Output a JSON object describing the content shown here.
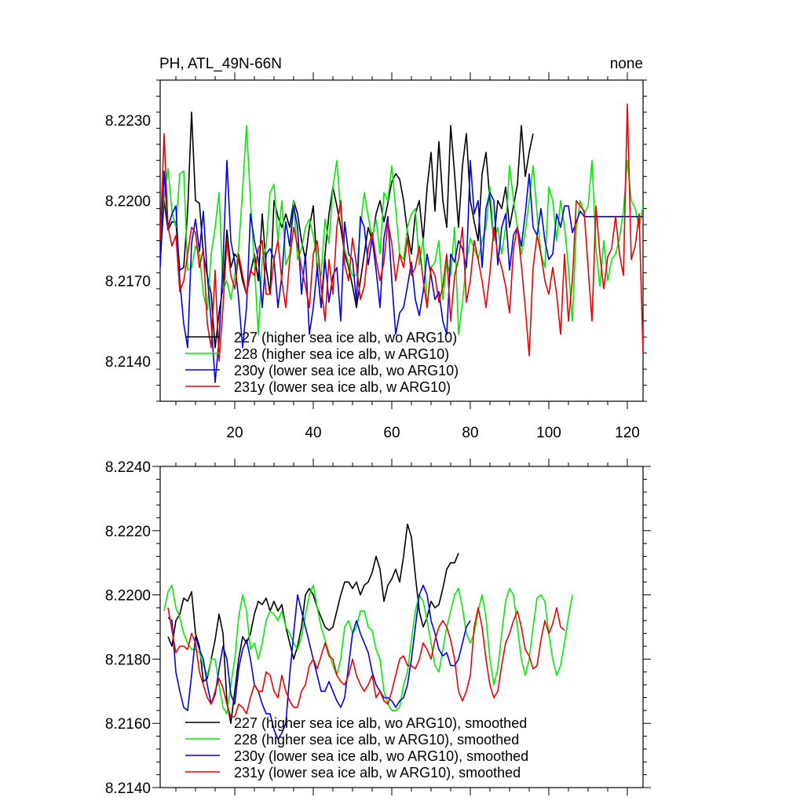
{
  "figure": {
    "title_left": "PH, ATL_49N-66N",
    "title_right": "none"
  },
  "chart_data": [
    {
      "type": "line",
      "title": "PH, ATL_49N-66N",
      "xlim": [
        1,
        124
      ],
      "ylim": [
        8.2125,
        8.2245
      ],
      "x_ticks": [
        20,
        40,
        60,
        80,
        100,
        120
      ],
      "x_tick_labels": [
        "20",
        "40",
        "60",
        "80",
        "100",
        "120"
      ],
      "y_ticks": [
        8.214,
        8.217,
        8.22,
        8.223
      ],
      "y_tick_labels": [
        "8.2140",
        "8.2170",
        "8.2200",
        "8.2230"
      ],
      "grid": false,
      "legend_position": "bottom-left",
      "series": [
        {
          "name": "227 (higher sea ice alb, wo ARG10)",
          "color": "#000000",
          "x_start": 1,
          "values": [
            8.2177,
            8.22,
            8.2189,
            8.2192,
            8.2192,
            8.2174,
            8.2175,
            8.2196,
            8.2233,
            8.22,
            8.2199,
            8.218,
            8.2172,
            8.2165,
            8.2145,
            8.2158,
            8.2168,
            8.2189,
            8.2175,
            8.218,
            8.2178,
            8.217,
            8.2165,
            8.2173,
            8.218,
            8.217,
            8.2195,
            8.2175,
            8.2165,
            8.22,
            8.2194,
            8.219,
            8.2195,
            8.219,
            8.22,
            8.2195,
            8.2185,
            8.2178,
            8.219,
            8.2198,
            8.2175,
            8.216,
            8.218,
            8.2195,
            8.2205,
            8.2198,
            8.219,
            8.218,
            8.2175,
            8.2168,
            8.216,
            8.217,
            8.218,
            8.219,
            8.2185,
            8.2195,
            8.22,
            8.2192,
            8.2199,
            8.2207,
            8.221,
            8.2208,
            8.22,
            8.2188,
            8.218,
            8.2195,
            8.22,
            8.2185,
            8.2205,
            8.2218,
            8.2196,
            8.2222,
            8.22,
            8.219,
            8.2228,
            8.221,
            8.219,
            8.2213,
            8.2225,
            8.22,
            8.2192,
            8.2185,
            8.221,
            8.2218,
            8.22,
            8.2185,
            8.22,
            8.2197,
            8.2205,
            8.219,
            8.2198,
            8.2206,
            8.2228,
            8.2209,
            8.2218,
            8.2225
          ]
        },
        {
          "name": "228 (higher sea ice alb, w ARG10)",
          "color": "#00ee00",
          "x_start": 1,
          "values": [
            8.2185,
            8.2201,
            8.2212,
            8.2196,
            8.219,
            8.221,
            8.2211,
            8.2174,
            8.2175,
            8.2183,
            8.218,
            8.2165,
            8.2159,
            8.218,
            8.219,
            8.2203,
            8.2167,
            8.217,
            8.2163,
            8.2172,
            8.2182,
            8.2204,
            8.2228,
            8.22,
            8.2176,
            8.215,
            8.2178,
            8.2183,
            8.2203,
            8.2206,
            8.2185,
            8.22,
            8.2176,
            8.218,
            8.22,
            8.2178,
            8.2182,
            8.219,
            8.2193,
            8.2187,
            8.2177,
            8.2172,
            8.2193,
            8.2184,
            8.2205,
            8.2215,
            8.2195,
            8.2182,
            8.2176,
            8.2172,
            8.2172,
            8.219,
            8.2203,
            8.2194,
            8.2186,
            8.2193,
            8.218,
            8.2203,
            8.22,
            8.2213,
            8.2197,
            8.218,
            8.2178,
            8.219,
            8.2195,
            8.2197,
            8.2176,
            8.2186,
            8.216,
            8.2175,
            8.2177,
            8.2185,
            8.2163,
            8.2177,
            8.2172,
            8.219,
            8.215,
            8.2162,
            8.2177,
            8.2186,
            8.2182,
            8.2178,
            8.2185,
            8.219,
            8.2205,
            8.2185,
            8.219,
            8.218,
            8.219,
            8.2213,
            8.22,
            8.219,
            8.218,
            8.2188,
            8.22,
            8.2213,
            8.2195,
            8.218,
            8.2175,
            8.2205,
            8.22,
            8.2185,
            8.22,
            8.219,
            8.2175,
            8.2155,
            8.219,
            8.22,
            8.2195,
            8.2198,
            8.2215,
            8.2182,
            8.2168,
            8.2185,
            8.217,
            8.2178,
            8.218,
            8.2186,
            8.2196,
            8.2215,
            8.22,
            8.2197,
            8.219,
            8.2198
          ]
        },
        {
          "name": "230y (lower sea ice alb, wo ARG10)",
          "color": "#0000ee",
          "x_start": 1,
          "values": [
            8.2175,
            8.2211,
            8.219,
            8.2195,
            8.2198,
            8.217,
            8.2154,
            8.2145,
            8.2184,
            8.2193,
            8.2181,
            8.2196,
            8.2172,
            8.2155,
            8.2132,
            8.2148,
            8.2177,
            8.2215,
            8.2185,
            8.2177,
            8.2163,
            8.2145,
            8.216,
            8.2195,
            8.2185,
            8.2178,
            8.216,
            8.218,
            8.2182,
            8.2178,
            8.216,
            8.2172,
            8.2192,
            8.2183,
            8.2198,
            8.219,
            8.2165,
            8.218,
            8.215,
            8.216,
            8.2175,
            8.216,
            8.2178,
            8.2162,
            8.2172,
            8.2175,
            8.2155,
            8.2192,
            8.218,
            8.2178,
            8.2162,
            8.2194,
            8.219,
            8.2176,
            8.2186,
            8.2174,
            8.216,
            8.2186,
            8.2194,
            8.217,
            8.215,
            8.2158,
            8.216,
            8.2168,
            8.2177,
            8.2163,
            8.2157,
            8.2166,
            8.218,
            8.2172,
            8.2163,
            8.2166,
            8.2155,
            8.215,
            8.218,
            8.2177,
            8.2185,
            8.2182,
            8.2175,
            8.2215,
            8.2195,
            8.22,
            8.2175,
            8.2197,
            8.2203,
            8.22,
            8.2176,
            8.219,
            8.2195,
            8.2174,
            8.2187,
            8.219,
            8.2183,
            8.2195,
            8.221,
            8.219,
            8.2187,
            8.2197,
            8.2185,
            8.2178,
            8.218,
            8.2195,
            8.219,
            8.2198,
            8.2198,
            8.2188,
            8.2192,
            8.2196,
            8.2194,
            8.2194,
            8.2194,
            8.2194,
            8.2194,
            8.2194,
            8.2194,
            8.2194,
            8.2194,
            8.2194,
            8.2194,
            8.2194,
            8.2194,
            8.2194,
            8.2194,
            8.2194
          ]
        },
        {
          "name": "231y (lower sea ice alb, w ARG10)",
          "color": "#ee0000",
          "x_start": 1,
          "values": [
            8.2185,
            8.2225,
            8.219,
            8.2183,
            8.2187,
            8.2166,
            8.217,
            8.218,
            8.219,
            8.2188,
            8.2175,
            8.2182,
            8.2154,
            8.2145,
            8.2174,
            8.214,
            8.216,
            8.2185,
            8.2172,
            8.2167,
            8.218,
            8.2172,
            8.2165,
            8.2174,
            8.2172,
            8.2182,
            8.2185,
            8.2165,
            8.2165,
            8.2178,
            8.2185,
            8.217,
            8.216,
            8.2178,
            8.219,
            8.2183,
            8.2175,
            8.2168,
            8.216,
            8.218,
            8.2185,
            8.2168,
            8.2155,
            8.2178,
            8.2165,
            8.219,
            8.22,
            8.2176,
            8.217,
            8.2186,
            8.2176,
            8.2163,
            8.2168,
            8.2182,
            8.2188,
            8.2178,
            8.217,
            8.2177,
            8.2192,
            8.2184,
            8.217,
            8.218,
            8.2175,
            8.2186,
            8.2172,
            8.2175,
            8.2183,
            8.217,
            8.216,
            8.2175,
            8.2172,
            8.2162,
            8.2168,
            8.218,
            8.2155,
            8.2172,
            8.2178,
            8.219,
            8.2162,
            8.217,
            8.2185,
            8.2178,
            8.217,
            8.216,
            8.2173,
            8.219,
            8.218,
            8.2175,
            8.2168,
            8.2158,
            8.2182,
            8.219,
            8.2176,
            8.216,
            8.2142,
            8.2175,
            8.2187,
            8.218,
            8.217,
            8.2165,
            8.2175,
            8.2165,
            8.215,
            8.218,
            8.2155,
            8.217,
            8.22,
            8.2198,
            8.2196,
            8.2175,
            8.2155,
            8.2198,
            8.218,
            8.2167,
            8.2179,
            8.2182,
            8.2194,
            8.218,
            8.2172,
            8.2236,
            8.2178,
            8.2183,
            8.2195,
            8.2143
          ]
        }
      ]
    },
    {
      "type": "line",
      "xlim": [
        1,
        124
      ],
      "ylim": [
        8.214,
        8.224
      ],
      "x_ticks": [
        20,
        40,
        60,
        80,
        100,
        120
      ],
      "x_tick_labels": [],
      "y_ticks": [
        8.214,
        8.216,
        8.218,
        8.22,
        8.222,
        8.224
      ],
      "y_tick_labels": [
        "8.2140",
        "8.2160",
        "8.2180",
        "8.2200",
        "8.2220",
        "8.2240"
      ],
      "grid": false,
      "legend_position": "bottom-left",
      "series": [
        {
          "name": "227 (higher sea ice alb, wo ARG10), smoothed",
          "color": "#000000",
          "x_start": 3,
          "values": [
            8.2187,
            8.2184,
            8.2192,
            8.2194,
            8.2199,
            8.2198,
            8.2201,
            8.2188,
            8.2184,
            8.2173,
            8.2174,
            8.218,
            8.2186,
            8.2194,
            8.2188,
            8.2167,
            8.216,
            8.217,
            8.218,
            8.2187,
            8.2185,
            8.2188,
            8.2194,
            8.2198,
            8.2197,
            8.2199,
            8.2195,
            8.2198,
            8.2195,
            8.2197,
            8.219,
            8.2185,
            8.218,
            8.2184,
            8.219,
            8.22,
            8.2202,
            8.22,
            8.2196,
            8.2193,
            8.219,
            8.2189,
            8.219,
            8.2195,
            8.22,
            8.2204,
            8.2204,
            8.2202,
            8.2204,
            8.22,
            8.2203,
            8.2204,
            8.2207,
            8.2212,
            8.2208,
            8.2198,
            8.2203,
            8.2205,
            8.2208,
            8.2204,
            8.2212,
            8.2222,
            8.2218,
            8.2206,
            8.2195,
            8.219,
            8.2193,
            8.2198,
            8.2196,
            8.2197,
            8.2202,
            8.2208,
            8.221,
            8.221,
            8.2213
          ]
        },
        {
          "name": "228 (higher sea ice alb, w ARG10), smoothed",
          "color": "#00ee00",
          "x_start": 2,
          "values": [
            8.2195,
            8.2201,
            8.2203,
            8.2196,
            8.2193,
            8.2188,
            8.2185,
            8.2183,
            8.2183,
            8.2182,
            8.2178,
            8.2175,
            8.218,
            8.218,
            8.2172,
            8.2165,
            8.2163,
            8.2172,
            8.218,
            8.2193,
            8.22,
            8.2195,
            8.2183,
            8.2185,
            8.218,
            8.2185,
            8.2192,
            8.2195,
            8.2194,
            8.2192,
            8.2195,
            8.219,
            8.2188,
            8.2185,
            8.2183,
            8.2187,
            8.2194,
            8.22,
            8.2203,
            8.2196,
            8.219,
            8.2186,
            8.2182,
            8.2178,
            8.2175,
            8.218,
            8.219,
            8.2192,
            8.2188,
            8.219,
            8.2195,
            8.2195,
            8.219,
            8.2189,
            8.2183,
            8.218,
            8.217,
            8.2166,
            8.2164,
            8.2164,
            8.2165,
            8.2172,
            8.2176,
            8.2186,
            8.2195,
            8.22,
            8.2198,
            8.2192,
            8.2185,
            8.2178,
            8.2176,
            8.2183,
            8.219,
            8.2195,
            8.22,
            8.2202,
            8.2196,
            8.2188,
            8.2185,
            8.2188,
            8.2195,
            8.22,
            8.2193,
            8.218,
            8.2172,
            8.2177,
            8.2188,
            8.2198,
            8.2202,
            8.22,
            8.219,
            8.218,
            8.2175,
            8.218,
            8.219,
            8.2199,
            8.22,
            8.2198,
            8.2188,
            8.218,
            8.2175,
            8.2178,
            8.2185,
            8.2193,
            8.22
          ]
        },
        {
          "name": "230y (lower sea ice alb, wo ARG10), smoothed",
          "color": "#0000ee",
          "x_start": 3,
          "values": [
            8.2193,
            8.2192,
            8.2176,
            8.217,
            8.2165,
            8.2164,
            8.2175,
            8.2187,
            8.2183,
            8.218,
            8.2172,
            8.2166,
            8.2169,
            8.2177,
            8.2184,
            8.218,
            8.2169,
            8.2166,
            8.2177,
            8.2183,
            8.2186,
            8.218,
            8.2172,
            8.217,
            8.2166,
            8.2163,
            8.2163,
            8.2158,
            8.2155,
            8.2157,
            8.216,
            8.2175,
            8.2188,
            8.22,
            8.2195,
            8.219,
            8.2185,
            8.218,
            8.2175,
            8.217,
            8.217,
            8.2173,
            8.217,
            8.2167,
            8.2165,
            8.2168,
            8.2178,
            8.2188,
            8.2192,
            8.2188,
            8.2185,
            8.2182,
            8.2176,
            8.2172,
            8.217,
            8.2168,
            8.2168,
            8.2167,
            8.2165,
            8.2167,
            8.2168,
            8.2172,
            8.218,
            8.219,
            8.22,
            8.2203,
            8.22,
            8.2192,
            8.2188,
            8.2183,
            8.2181,
            8.2182,
            8.2178,
            8.2178,
            8.218,
            8.2185,
            8.219,
            8.2192
          ]
        },
        {
          "name": "231y (lower sea ice alb, w ARG10), smoothed",
          "color": "#ee0000",
          "x_start": 3,
          "values": [
            8.2196,
            8.2189,
            8.2182,
            8.2184,
            8.2184,
            8.2183,
            8.2188,
            8.2185,
            8.2176,
            8.2172,
            8.2168,
            8.2166,
            8.217,
            8.2174,
            8.2171,
            8.2166,
            8.2162,
            8.2162,
            8.2166,
            8.2165,
            8.2163,
            8.2168,
            8.2172,
            8.217,
            8.217,
            8.2176,
            8.2175,
            8.217,
            8.2168,
            8.2175,
            8.217,
            8.2167,
            8.2165,
            8.2165,
            8.217,
            8.2172,
            8.2178,
            8.218,
            8.2177,
            8.2181,
            8.2185,
            8.2181,
            8.218,
            8.2175,
            8.2173,
            8.2172,
            8.2175,
            8.218,
            8.2175,
            8.2172,
            8.217,
            8.2172,
            8.2175,
            8.2168,
            8.217,
            8.2167,
            8.2166,
            8.217,
            8.2175,
            8.218,
            8.2181,
            8.2178,
            8.2178,
            8.2177,
            8.218,
            8.2185,
            8.2183,
            8.218,
            8.2186,
            8.219,
            8.2192,
            8.219,
            8.2186,
            8.218,
            8.217,
            8.2167,
            8.217,
            8.2175,
            8.219,
            8.2196,
            8.219,
            8.218,
            8.2172,
            8.2168,
            8.217,
            8.2178,
            8.2185,
            8.2188,
            8.2192,
            8.2195,
            8.219,
            8.2183,
            8.2181,
            8.2177,
            8.2178,
            8.2186,
            8.2192,
            8.2188,
            8.2191,
            8.2196,
            8.219,
            8.2189
          ]
        }
      ]
    }
  ]
}
